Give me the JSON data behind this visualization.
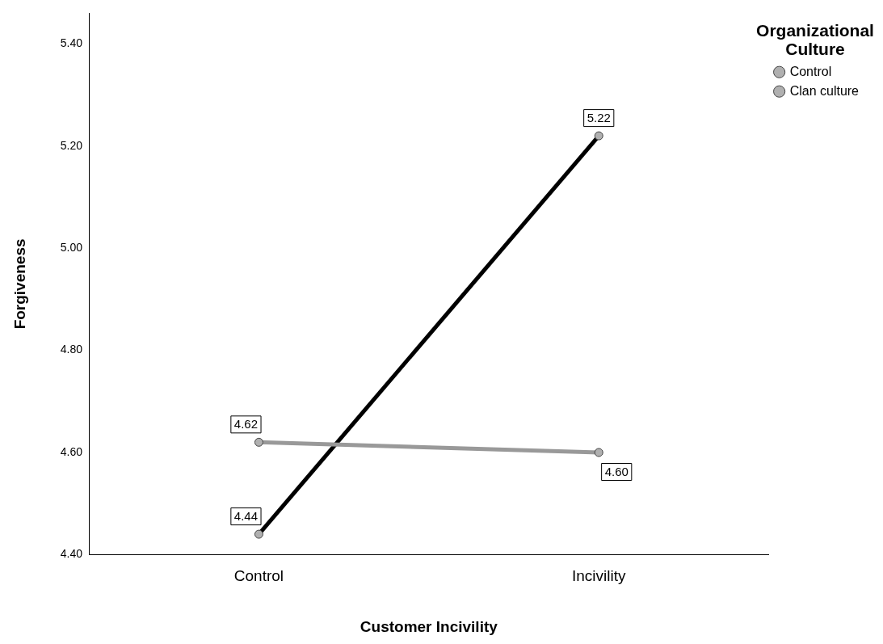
{
  "chart_data": {
    "type": "line",
    "xlabel": "Customer Incivility",
    "ylabel": "Forgiveness",
    "legend_title": "Organizational Culture",
    "categories": [
      "Control",
      "Incivility"
    ],
    "series": [
      {
        "name": "Control",
        "color": "#999999",
        "values": [
          4.62,
          4.6
        ],
        "value_labels": [
          "4.62",
          "4.60"
        ]
      },
      {
        "name": "Clan culture",
        "color": "#000000",
        "values": [
          4.44,
          5.22
        ],
        "value_labels": [
          "4.44",
          "5.22"
        ]
      }
    ],
    "ylim": [
      4.4,
      5.46
    ],
    "yticks": [
      {
        "value": 4.4,
        "label": "4.40"
      },
      {
        "value": 4.6,
        "label": "4.60"
      },
      {
        "value": 4.8,
        "label": "4.80"
      },
      {
        "value": 5.0,
        "label": "5.00"
      },
      {
        "value": 5.2,
        "label": "5.20"
      },
      {
        "value": 5.4,
        "label": "5.40"
      }
    ],
    "grid": false,
    "legend": "top right",
    "marker": "circle",
    "line_style": "solid"
  }
}
